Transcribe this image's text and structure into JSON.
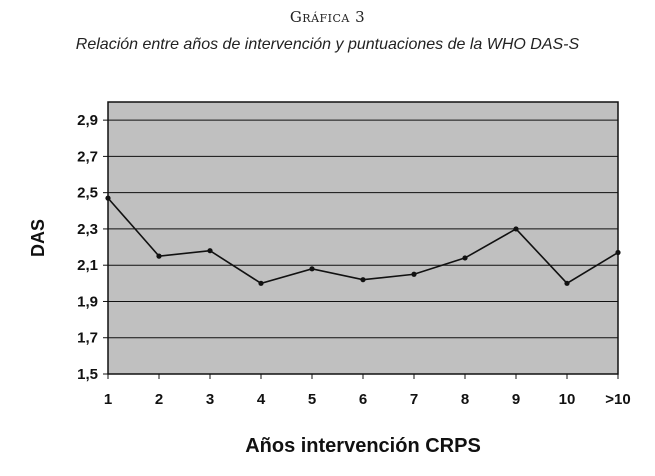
{
  "page": {
    "heading": "Gráfica 3",
    "subtitle": "Relación entre años de intervención y puntuaciones de la WHO DAS-S"
  },
  "chart_data": {
    "type": "line",
    "title": "",
    "xlabel": "Años intervención CRPS",
    "ylabel": "DAS",
    "categories": [
      "1",
      "2",
      "3",
      "4",
      "5",
      "6",
      "7",
      "8",
      "9",
      "10",
      ">10"
    ],
    "series": [
      {
        "values": [
          2.47,
          2.15,
          2.18,
          2.0,
          2.08,
          2.02,
          2.05,
          2.14,
          2.3,
          2.0,
          2.17
        ]
      }
    ],
    "ylim": [
      1.5,
      3.0
    ],
    "yticks": [
      "1,5",
      "1,7",
      "1,9",
      "2,1",
      "2,3",
      "2,5",
      "2,7",
      "2,9"
    ],
    "ytick_values": [
      1.5,
      1.7,
      1.9,
      2.1,
      2.3,
      2.5,
      2.7,
      2.9
    ],
    "grid": true,
    "plot_background": "#c0c0c0",
    "line_color": "#111111"
  }
}
